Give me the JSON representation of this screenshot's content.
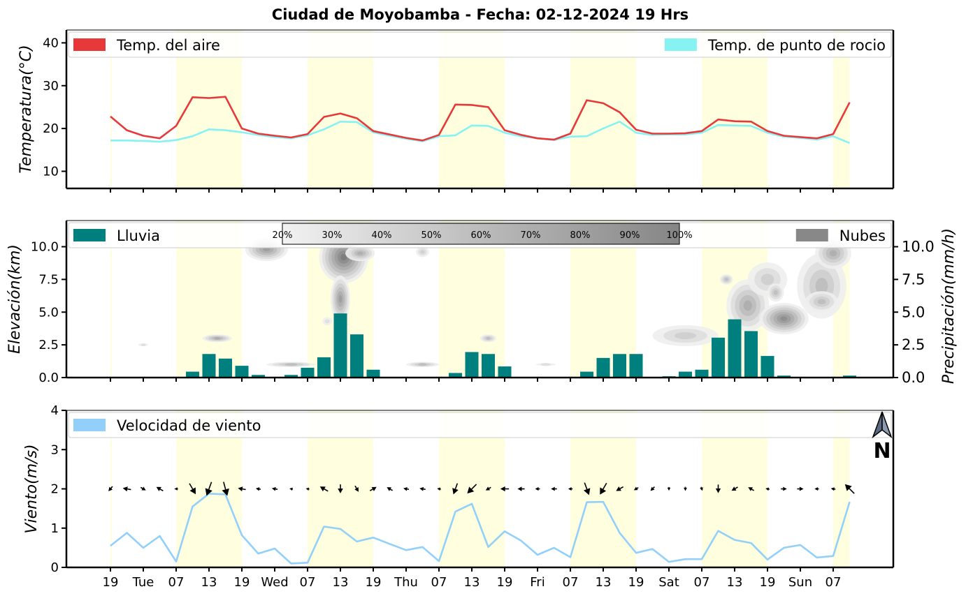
{
  "title": "Ciudad de Moyobamba   -   Fecha: 02-12-2024 19 Hrs",
  "x_tick_labels": [
    "19",
    "Tue",
    "07",
    "13",
    "19",
    "Wed",
    "07",
    "13",
    "19",
    "Thu",
    "07",
    "13",
    "19",
    "Fri",
    "07",
    "13",
    "19",
    "Sat",
    "07",
    "13",
    "19",
    "Sun",
    "07"
  ],
  "colors": {
    "air": "#e8393a",
    "dew": "#87f2f2",
    "rain": "#007f7f",
    "clouds": "#888888",
    "wind": "#92d0fa",
    "day_band": "#ffffe0"
  },
  "north_label": "N",
  "chart_data": [
    {
      "type": "line",
      "ylabel": "Temperatura(°C)",
      "ylim": [
        6,
        43
      ],
      "yticks": [
        10,
        20,
        30,
        40
      ],
      "legend": {
        "left": "Temp. del aire",
        "right": "Temp. de punto de rocio"
      },
      "series": [
        {
          "name": "Temp. del aire",
          "color": "#e8393a",
          "values": [
            22.8,
            19.6,
            18.3,
            17.7,
            20.6,
            27.3,
            27.1,
            27.4,
            20.0,
            18.8,
            18.3,
            17.9,
            18.7,
            22.7,
            23.5,
            22.4,
            19.4,
            18.6,
            17.8,
            17.2,
            18.5,
            25.6,
            25.5,
            25.0,
            19.6,
            18.5,
            17.7,
            17.4,
            18.8,
            26.6,
            25.9,
            23.8,
            19.7,
            18.8,
            18.8,
            18.9,
            19.4,
            22.1,
            21.7,
            21.6,
            19.4,
            18.3,
            18.0,
            17.7,
            18.7,
            26.1
          ]
        },
        {
          "name": "Temp. de punto de rocio",
          "color": "#87f2f2",
          "values": [
            17.2,
            17.2,
            17.1,
            16.9,
            17.3,
            18.2,
            19.8,
            19.6,
            19.1,
            18.5,
            18.0,
            17.7,
            18.4,
            19.8,
            21.6,
            21.5,
            19.1,
            18.3,
            17.6,
            17.0,
            18.2,
            18.4,
            20.7,
            20.6,
            19.0,
            18.2,
            17.7,
            17.3,
            18.1,
            18.2,
            20.0,
            21.6,
            19.0,
            18.5,
            18.6,
            18.6,
            19.0,
            20.8,
            20.7,
            20.6,
            19.0,
            18.1,
            17.8,
            17.4,
            18.2,
            16.6
          ]
        }
      ]
    },
    {
      "type": "bar",
      "ylabel": "Elevación(km)",
      "ylabel_right": "Precipitación(mm/h)",
      "ylim": [
        0,
        12
      ],
      "yticks": [
        0.0,
        2.5,
        5.0,
        7.5,
        10.0
      ],
      "legend": {
        "left": "Lluvia",
        "right": "Nubes"
      },
      "colorbar_labels": [
        "20%",
        "30%",
        "40%",
        "50%",
        "60%",
        "70%",
        "80%",
        "90%",
        "100%"
      ],
      "series": [
        {
          "name": "Lluvia",
          "color": "#007f7f",
          "values": [
            0,
            0,
            0.05,
            0,
            0.05,
            0.45,
            1.8,
            1.45,
            0.9,
            0.2,
            0.05,
            0.2,
            0.75,
            1.55,
            4.9,
            3.3,
            0.6,
            0.05,
            0.05,
            0,
            0.05,
            0.35,
            1.95,
            1.8,
            0.85,
            0,
            0,
            0,
            0,
            0.45,
            1.5,
            1.8,
            1.8,
            0.05,
            0.1,
            0.45,
            0.6,
            3.05,
            4.45,
            3.55,
            1.65,
            0.15,
            0,
            0,
            0.05,
            0.15
          ]
        }
      ],
      "clouds": [
        {
          "x": 9.5,
          "y": 9.8,
          "rx": 1.3,
          "ry": 0.9,
          "level": 0.7
        },
        {
          "x": 14.2,
          "y": 9.2,
          "rx": 1.5,
          "ry": 2.0,
          "level": 0.95
        },
        {
          "x": 14.0,
          "y": 6.0,
          "rx": 0.6,
          "ry": 1.8,
          "level": 0.8
        },
        {
          "x": 15.2,
          "y": 9.5,
          "rx": 0.9,
          "ry": 0.6,
          "level": 0.6
        },
        {
          "x": 6.5,
          "y": 3.0,
          "rx": 0.9,
          "ry": 0.3,
          "level": 0.6
        },
        {
          "x": 2.0,
          "y": 2.5,
          "rx": 0.3,
          "ry": 0.1,
          "level": 0.3
        },
        {
          "x": 11.0,
          "y": 1.0,
          "rx": 1.5,
          "ry": 0.2,
          "level": 0.45
        },
        {
          "x": 19.0,
          "y": 1.0,
          "rx": 1.0,
          "ry": 0.2,
          "level": 0.45
        },
        {
          "x": 13.2,
          "y": 4.3,
          "rx": 0.3,
          "ry": 0.3,
          "level": 0.3
        },
        {
          "x": 19.0,
          "y": 9.6,
          "rx": 0.4,
          "ry": 0.4,
          "level": 0.4
        },
        {
          "x": 23.0,
          "y": 3.0,
          "rx": 0.5,
          "ry": 0.3,
          "level": 0.55
        },
        {
          "x": 26.5,
          "y": 1.0,
          "rx": 0.6,
          "ry": 0.1,
          "level": 0.3
        },
        {
          "x": 35.0,
          "y": 3.2,
          "rx": 2.0,
          "ry": 0.8,
          "level": 0.35
        },
        {
          "x": 37.5,
          "y": 7.5,
          "rx": 0.4,
          "ry": 0.4,
          "level": 0.45
        },
        {
          "x": 38.8,
          "y": 5.5,
          "rx": 1.3,
          "ry": 2.0,
          "level": 0.65
        },
        {
          "x": 40.0,
          "y": 7.5,
          "rx": 1.2,
          "ry": 1.3,
          "level": 0.35
        },
        {
          "x": 41.0,
          "y": 4.5,
          "rx": 1.5,
          "ry": 1.2,
          "level": 0.85
        },
        {
          "x": 40.5,
          "y": 6.5,
          "rx": 0.5,
          "ry": 0.7,
          "level": 0.5
        },
        {
          "x": 43.3,
          "y": 7.0,
          "rx": 1.5,
          "ry": 2.5,
          "level": 0.45
        },
        {
          "x": 44.0,
          "y": 9.5,
          "rx": 1.1,
          "ry": 1.2,
          "level": 0.6
        },
        {
          "x": 43.3,
          "y": 5.8,
          "rx": 1.0,
          "ry": 0.8,
          "level": 0.55
        }
      ]
    },
    {
      "type": "line",
      "ylabel": "Viento(m/s)",
      "ylim": [
        0,
        4
      ],
      "yticks": [
        0,
        1,
        2,
        3,
        4
      ],
      "legend": {
        "left": "Velocidad de viento"
      },
      "series": [
        {
          "name": "Velocidad de viento",
          "color": "#92d0fa",
          "values": [
            0.55,
            0.88,
            0.5,
            0.8,
            0.15,
            1.55,
            1.88,
            1.86,
            0.82,
            0.35,
            0.48,
            0.1,
            0.12,
            1.04,
            0.98,
            0.66,
            0.76,
            0.6,
            0.44,
            0.52,
            0.16,
            1.42,
            1.62,
            0.52,
            0.92,
            0.68,
            0.32,
            0.5,
            0.26,
            1.66,
            1.67,
            0.88,
            0.37,
            0.47,
            0.14,
            0.21,
            0.21,
            0.93,
            0.7,
            0.62,
            0.2,
            0.5,
            0.57,
            0.25,
            0.29,
            1.67
          ]
        }
      ],
      "wind_dir_deg": [
        40,
        100,
        300,
        120,
        90,
        330,
        20,
        345,
        100,
        100,
        100,
        100,
        100,
        120,
        360,
        330,
        240,
        120,
        100,
        100,
        100,
        20,
        45,
        60,
        90,
        90,
        90,
        90,
        90,
        340,
        30,
        60,
        60,
        45,
        360,
        360,
        340,
        360,
        60,
        120,
        100,
        270,
        270,
        90,
        100,
        135
      ]
    }
  ]
}
